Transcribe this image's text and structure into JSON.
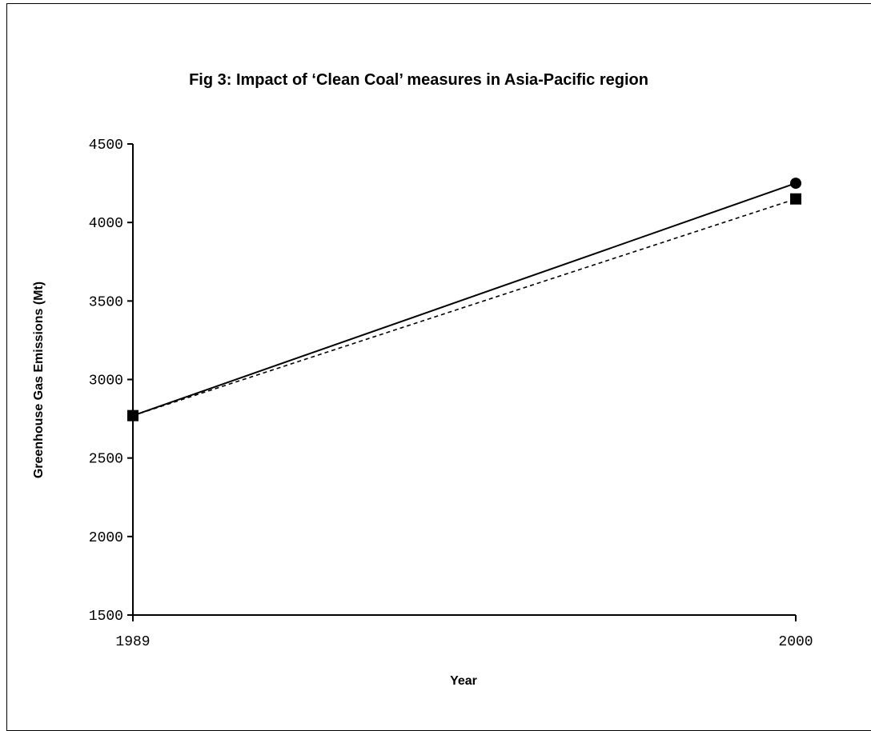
{
  "chart_data": {
    "type": "line",
    "title": "Fig 3:  Impact of ‘Clean Coal’ measures in Asia-Pacific region",
    "xlabel": "Year",
    "ylabel": "Greenhouse Gas Emissions (Mt)",
    "x": [
      "1989",
      "2000"
    ],
    "ylim": [
      1500,
      4500
    ],
    "y_ticks": [
      "1500",
      "2000",
      "2500",
      "3000",
      "3500",
      "4000",
      "4500"
    ],
    "x_ticks": [
      "1989",
      "2000"
    ],
    "grid": false,
    "legend": "none",
    "series": [
      {
        "marker": "circle",
        "line": "solid",
        "color": "#000000",
        "values": [
          2770,
          4250
        ]
      },
      {
        "marker": "square",
        "line": "dashed",
        "color": "#000000",
        "values": [
          2770,
          4150
        ]
      }
    ]
  }
}
